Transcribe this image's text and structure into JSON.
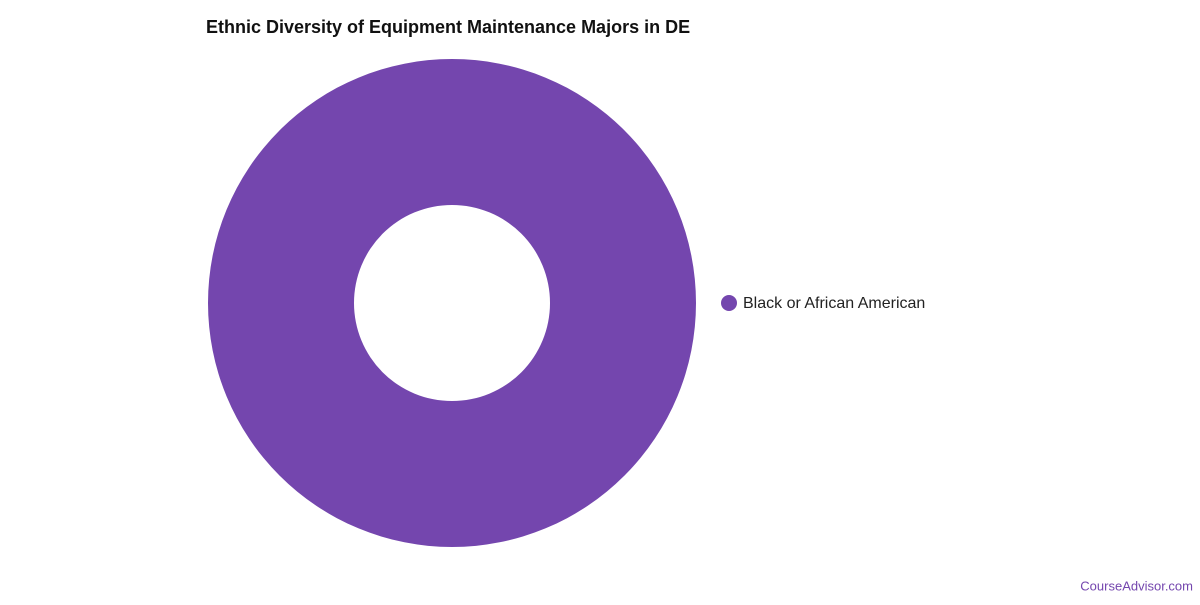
{
  "chart_data": {
    "type": "donut",
    "title": "Ethnic Diversity of Equipment Maintenance Majors in DE",
    "categories": [
      "Black or African American"
    ],
    "values": [
      100
    ],
    "colors": [
      "#7446ae"
    ],
    "legend": "right",
    "source": "CourseAdvisor.com"
  }
}
